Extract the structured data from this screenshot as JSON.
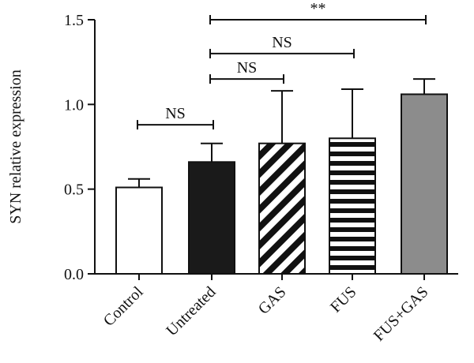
{
  "chart_data": {
    "type": "bar",
    "ylabel": "SYN relative expression",
    "ylim": [
      0,
      1.5
    ],
    "y_ticks": [
      0.0,
      0.5,
      1.0,
      1.5
    ],
    "y_tick_labels": [
      "0.0",
      "0.5",
      "1.0",
      "1.5"
    ],
    "categories": [
      "Control",
      "Untreated",
      "GAS",
      "FUS",
      "FUS+GAS"
    ],
    "values": [
      0.51,
      0.66,
      0.77,
      0.8,
      1.06
    ],
    "error_upper": [
      0.56,
      0.77,
      1.08,
      1.09,
      1.15
    ],
    "bar_styles": [
      {
        "fill": "#ffffff",
        "pattern": "none"
      },
      {
        "fill": "#1a1a1a",
        "pattern": "none"
      },
      {
        "fill": "#ffffff",
        "pattern": "diagonal-stripes"
      },
      {
        "fill": "#ffffff",
        "pattern": "horizontal-stripes"
      },
      {
        "fill": "#8c8c8c",
        "pattern": "none"
      }
    ],
    "significance": [
      {
        "from": 0,
        "to": 1,
        "label": "NS"
      },
      {
        "from": 1,
        "to": 2,
        "label": "NS"
      },
      {
        "from": 1,
        "to": 3,
        "label": "NS"
      },
      {
        "from": 1,
        "to": 4,
        "label": "**"
      }
    ],
    "sig_levels": [
      0.88,
      1.15,
      1.3,
      1.5
    ]
  }
}
